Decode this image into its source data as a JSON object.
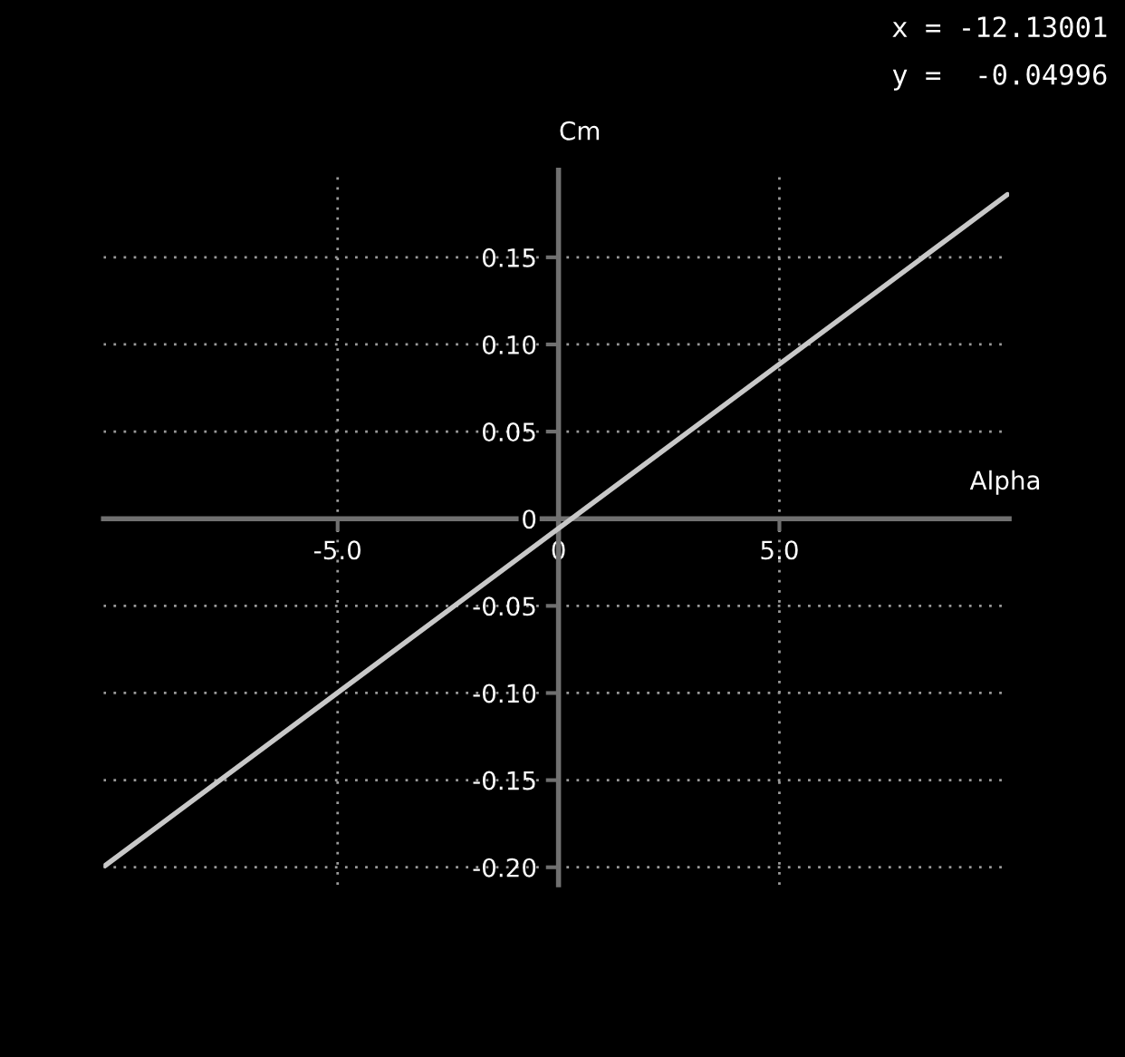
{
  "chart_data": {
    "type": "line",
    "xlabel": "Alpha",
    "ylabel": "Cm",
    "annotations": [
      "x = -12.13001",
      "y =  -0.04996"
    ],
    "series": [
      {
        "type": "line",
        "color": "#c8c8c8",
        "x": [
          -10.26,
          10.16
        ],
        "values": [
          -0.199,
          0.186
        ]
      }
    ],
    "xlim": [
      -10.3,
      10.2
    ],
    "ylim": [
      -0.21,
      0.2
    ],
    "xticks": [
      {
        "value": -5,
        "label": "-5.0"
      },
      0,
      {
        "value": 5,
        "label": "5.0"
      }
    ],
    "yticks": [
      {
        "value": -0.2,
        "label": "-0.20"
      },
      -0.15,
      {
        "value": -0.1,
        "label": "-0.10"
      },
      -0.05,
      0,
      0.05,
      {
        "value": 0.1,
        "label": "0.10"
      },
      0.15
    ],
    "grid": true,
    "legend": false,
    "marker": "none",
    "line_style": "solid"
  }
}
